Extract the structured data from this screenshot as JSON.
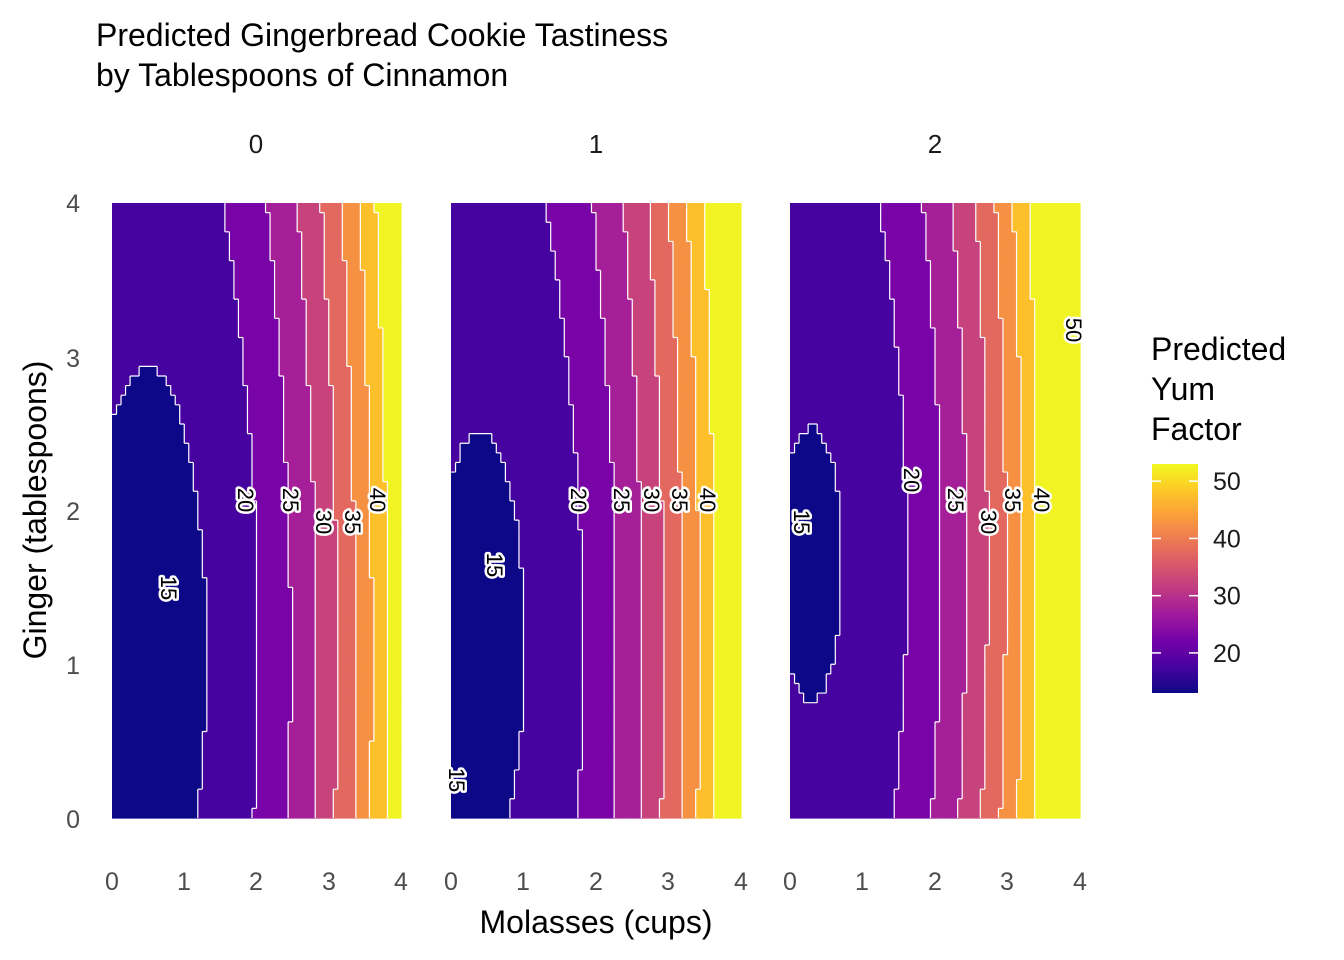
{
  "chart_data": {
    "type": "heatmap",
    "subtype": "filled-contour",
    "title_lines": [
      "Predicted Gingerbread Cookie Tastiness",
      "by Tablespoons of Cinnamon"
    ],
    "xlabel": "Molasses (cups)",
    "ylabel": "Ginger (tablespoons)",
    "xlim": [
      0,
      4
    ],
    "ylim": [
      0,
      4
    ],
    "x_ticks": [
      "0",
      "1",
      "2",
      "3",
      "4"
    ],
    "y_ticks": [
      "0",
      "1",
      "2",
      "3",
      "4"
    ],
    "facets": [
      "0",
      "1",
      "2"
    ],
    "contour_breaks": [
      15,
      20,
      25,
      30,
      35,
      40,
      45,
      50
    ],
    "contour_label_values": {
      "0": [
        "15",
        "20",
        "25",
        "30",
        "35",
        "40"
      ],
      "1": [
        "15",
        "15",
        "20",
        "25",
        "30",
        "35",
        "40"
      ],
      "2": [
        "15",
        "20",
        "25",
        "30",
        "35",
        "40",
        "50"
      ]
    },
    "legend": {
      "title_lines": [
        "Predicted",
        "Yum",
        "Factor"
      ],
      "ticks": [
        "20",
        "30",
        "40",
        "50"
      ],
      "tick_values": [
        20,
        30,
        40,
        50
      ],
      "range": [
        13,
        53
      ],
      "palette": "plasma",
      "position": "right"
    },
    "grid": false
  },
  "colors": {
    "plasma": [
      "#0d0887",
      "#46039f",
      "#7201a8",
      "#9c179e",
      "#bd3786",
      "#d8576b",
      "#ed7953",
      "#fb9f3a",
      "#fdca26",
      "#f0f921"
    ],
    "contour_line": "#ffffff",
    "background": "#ffffff"
  }
}
